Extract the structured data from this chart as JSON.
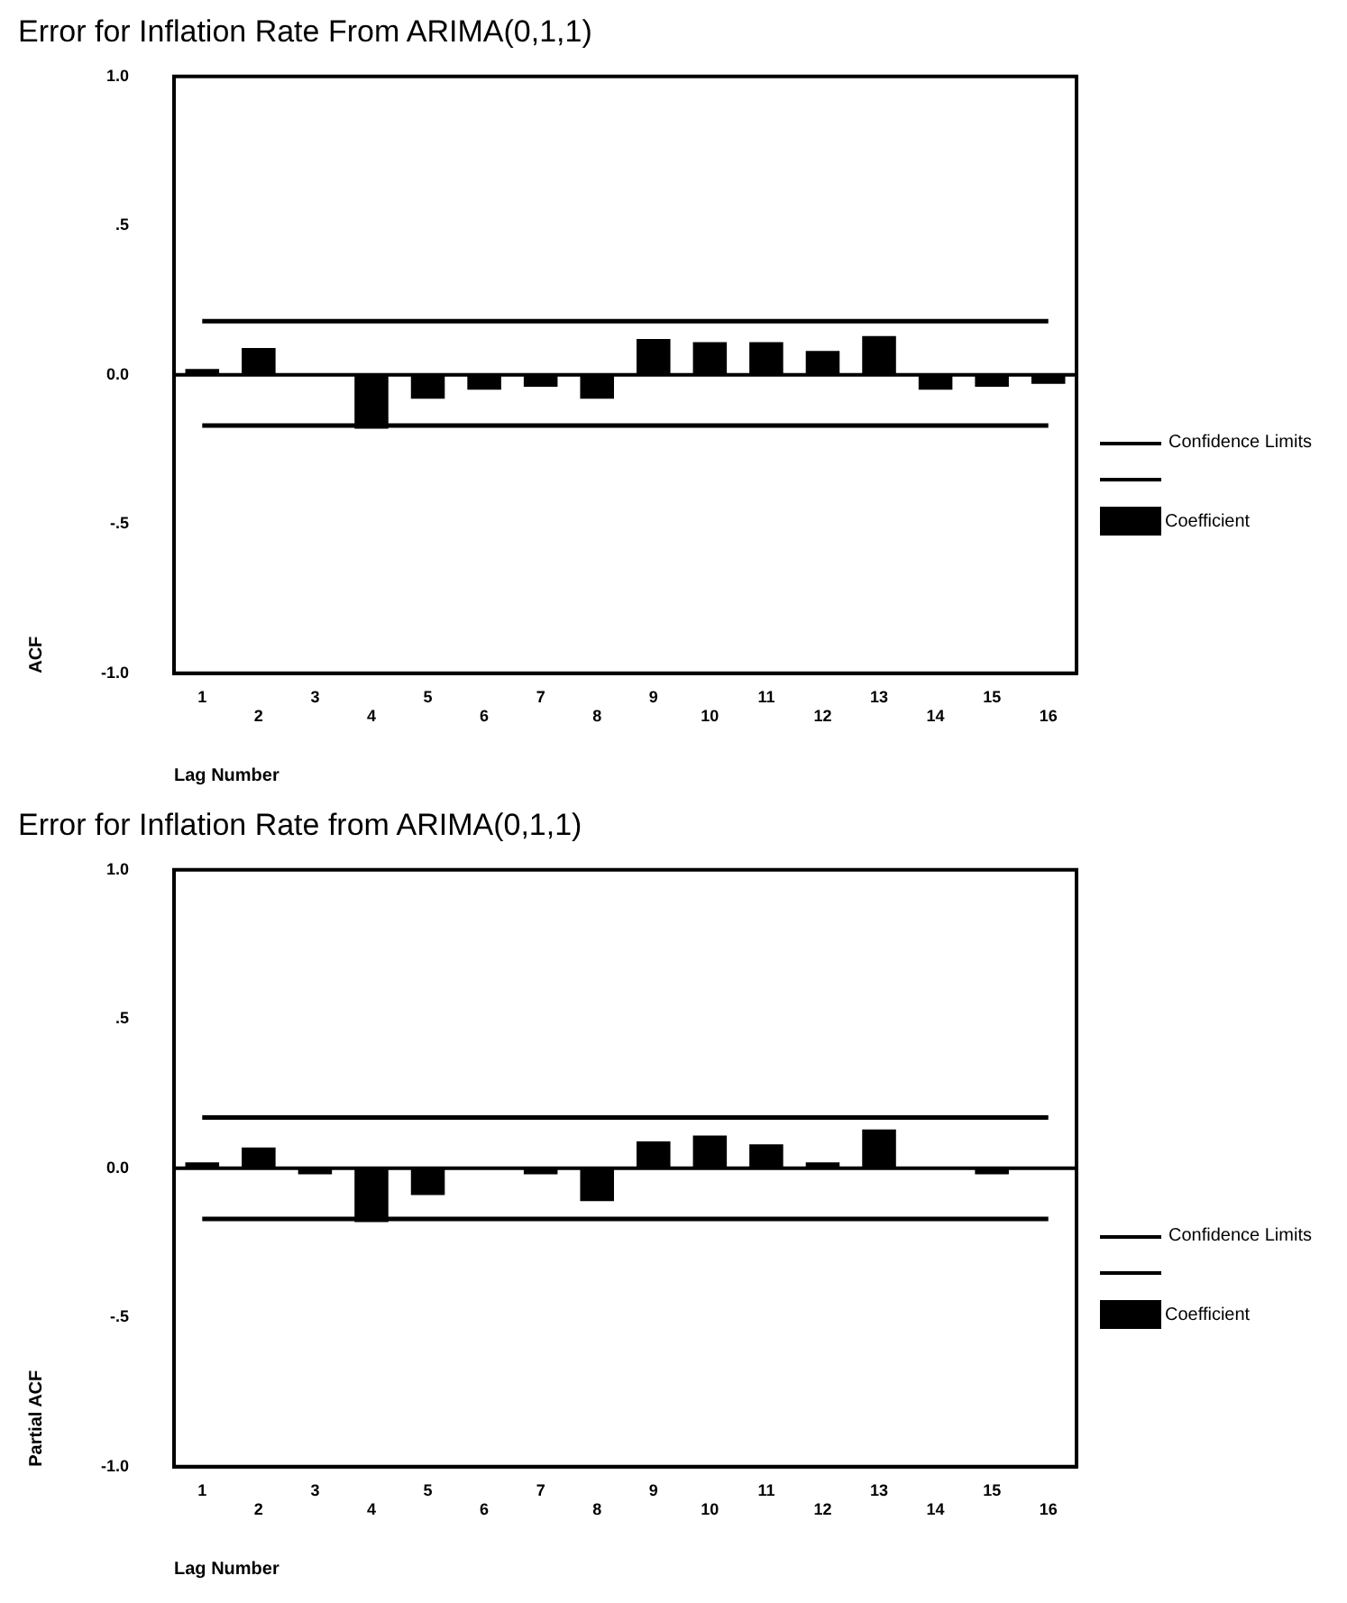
{
  "chart_data": [
    {
      "type": "bar",
      "title": "Error for Inflation Rate From ARIMA(0,1,1)",
      "xlabel": "Lag Number",
      "ylabel": "ACF",
      "categories": [
        "1",
        "2",
        "3",
        "4",
        "5",
        "6",
        "7",
        "8",
        "9",
        "10",
        "11",
        "12",
        "13",
        "14",
        "15",
        "16"
      ],
      "series": [
        {
          "name": "Coefficient",
          "color": "#000000",
          "values": [
            0.02,
            0.09,
            0.0,
            -0.18,
            -0.08,
            -0.05,
            -0.04,
            -0.08,
            0.12,
            0.11,
            0.11,
            0.08,
            0.13,
            -0.05,
            -0.04,
            -0.03
          ]
        },
        {
          "name": "Confidence Limits",
          "type": "line",
          "color": "#000000",
          "values": [
            0.18,
            0.18,
            0.18,
            0.18,
            0.18,
            0.18,
            0.18,
            0.18,
            0.18,
            0.18,
            0.18,
            0.18,
            0.18,
            0.18,
            0.18,
            0.18
          ]
        },
        {
          "type": "line",
          "color": "#000000",
          "values": [
            -0.17,
            -0.17,
            -0.17,
            -0.17,
            -0.17,
            -0.17,
            -0.17,
            -0.17,
            -0.17,
            -0.17,
            -0.17,
            -0.17,
            -0.17,
            -0.17,
            -0.17,
            -0.17
          ]
        }
      ],
      "ref_lines": [
        {
          "axis": "y",
          "value": 0
        }
      ],
      "ylim": [
        -1,
        1
      ],
      "yticks": [
        {
          "value": -1,
          "label": "-1.0"
        },
        {
          "value": -0.5,
          "label": "-.5"
        },
        {
          "value": 0,
          "label": "0.0"
        },
        {
          "value": 0.5,
          "label": ".5"
        },
        {
          "value": 1,
          "label": "1.0"
        }
      ],
      "grid": false,
      "legend": "right",
      "marker": "none"
    },
    {
      "type": "bar",
      "title": "Error for Inflation Rate from ARIMA(0,1,1)",
      "xlabel": "Lag Number",
      "ylabel": "Partial ACF",
      "categories": [
        "1",
        "2",
        "3",
        "4",
        "5",
        "6",
        "7",
        "8",
        "9",
        "10",
        "11",
        "12",
        "13",
        "14",
        "15",
        "16"
      ],
      "series": [
        {
          "name": "Coefficient",
          "color": "#000000",
          "values": [
            0.02,
            0.07,
            -0.02,
            -0.18,
            -0.09,
            0.0,
            -0.02,
            -0.11,
            0.09,
            0.11,
            0.08,
            0.02,
            0.13,
            null,
            -0.02,
            0.0
          ]
        },
        {
          "name": "Confidence Limits",
          "type": "line",
          "color": "#000000",
          "values": [
            0.17,
            0.17,
            0.17,
            0.17,
            0.17,
            0.17,
            0.17,
            0.17,
            0.17,
            0.17,
            0.17,
            0.17,
            0.17,
            0.17,
            0.17,
            0.17
          ]
        },
        {
          "type": "line",
          "color": "#000000",
          "values": [
            -0.17,
            -0.17,
            -0.17,
            -0.17,
            -0.17,
            -0.17,
            -0.17,
            -0.17,
            -0.17,
            -0.17,
            -0.17,
            -0.17,
            -0.17,
            -0.17,
            -0.17,
            -0.17
          ]
        }
      ],
      "ref_lines": [
        {
          "axis": "y",
          "value": 0
        }
      ],
      "ylim": [
        -1,
        1
      ],
      "yticks": [
        {
          "value": -1,
          "label": "-1.0"
        },
        {
          "value": -0.5,
          "label": "-.5"
        },
        {
          "value": 0,
          "label": "0.0"
        },
        {
          "value": 0.5,
          "label": ".5"
        },
        {
          "value": 1,
          "label": "1.0"
        }
      ],
      "grid": false,
      "legend": "right",
      "marker": "none"
    }
  ]
}
